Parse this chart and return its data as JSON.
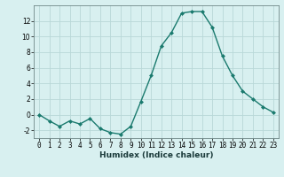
{
  "x": [
    0,
    1,
    2,
    3,
    4,
    5,
    6,
    7,
    8,
    9,
    10,
    11,
    12,
    13,
    14,
    15,
    16,
    17,
    18,
    19,
    20,
    21,
    22,
    23
  ],
  "y": [
    0,
    -0.8,
    -1.5,
    -0.8,
    -1.2,
    -0.5,
    -1.8,
    -2.3,
    -2.5,
    -1.5,
    1.7,
    5.0,
    8.8,
    10.5,
    13.0,
    13.2,
    13.2,
    11.2,
    7.5,
    5.0,
    3.0,
    2.0,
    1.0,
    0.3
  ],
  "line_color": "#1a7a6e",
  "marker": "D",
  "marker_size": 2.0,
  "xlabel": "Humidex (Indice chaleur)",
  "ylim": [
    -3,
    14
  ],
  "xlim": [
    -0.5,
    23.5
  ],
  "yticks": [
    -2,
    0,
    2,
    4,
    6,
    8,
    10,
    12
  ],
  "xticks": [
    0,
    1,
    2,
    3,
    4,
    5,
    6,
    7,
    8,
    9,
    10,
    11,
    12,
    13,
    14,
    15,
    16,
    17,
    18,
    19,
    20,
    21,
    22,
    23
  ],
  "bg_color": "#d8f0f0",
  "grid_color": "#b8d8d8",
  "line_width": 1.0,
  "tick_fontsize": 5.5,
  "xlabel_fontsize": 6.5
}
